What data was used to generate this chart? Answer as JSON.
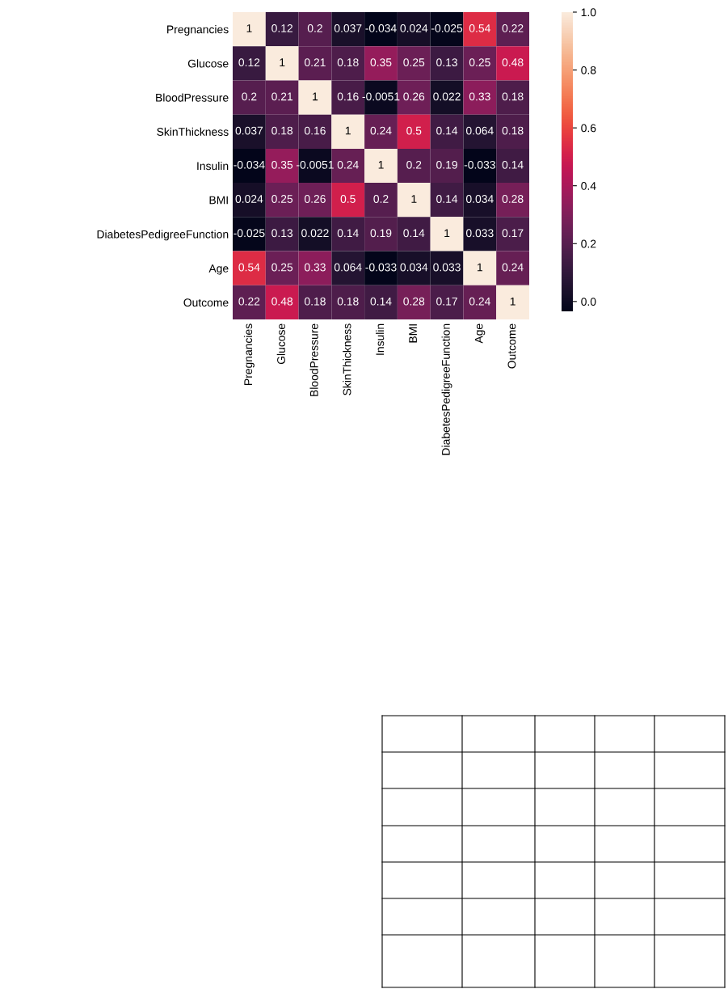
{
  "chart_data": {
    "type": "heatmap",
    "categories": [
      "Pregnancies",
      "Glucose",
      "BloodPressure",
      "SkinThickness",
      "Insulin",
      "BMI",
      "DiabetesPedigreeFunction",
      "Age",
      "Outcome"
    ],
    "y_categories": [
      "Pregnancies",
      "Glucose",
      "BloodPressure",
      "SkinThickness",
      "Insulin",
      "BMI",
      "DiabetesPedigreeFunction",
      "Age",
      "Outcome"
    ],
    "cells": [
      [
        1,
        0.12,
        0.2,
        0.037,
        -0.034,
        0.024,
        -0.025,
        0.54,
        0.22
      ],
      [
        0.12,
        1,
        0.21,
        0.18,
        0.35,
        0.25,
        0.13,
        0.25,
        0.48
      ],
      [
        0.2,
        0.21,
        1,
        0.16,
        -0.0051,
        0.26,
        0.022,
        0.33,
        0.18
      ],
      [
        0.037,
        0.18,
        0.16,
        1,
        0.24,
        0.5,
        0.14,
        0.064,
        0.18
      ],
      [
        -0.034,
        0.35,
        -0.0051,
        0.24,
        1,
        0.2,
        0.19,
        -0.033,
        0.14
      ],
      [
        0.024,
        0.25,
        0.26,
        0.5,
        0.2,
        1,
        0.14,
        0.034,
        0.28
      ],
      [
        -0.025,
        0.13,
        0.022,
        0.14,
        0.19,
        0.14,
        1,
        0.033,
        0.17
      ],
      [
        0.54,
        0.25,
        0.33,
        0.064,
        -0.033,
        0.034,
        0.033,
        1,
        0.24
      ],
      [
        0.22,
        0.48,
        0.18,
        0.18,
        0.14,
        0.28,
        0.17,
        0.24,
        1
      ]
    ],
    "clim": [
      -0.034,
      1
    ],
    "cticks": [
      {
        "value": 0,
        "label": "0.0"
      },
      {
        "value": 0.2,
        "label": "0.2"
      },
      {
        "value": 0.4,
        "label": "0.4"
      },
      {
        "value": 0.6,
        "label": "0.6"
      },
      {
        "value": 0.8,
        "label": "0.8"
      },
      {
        "value": 1,
        "label": "1.0"
      }
    ],
    "data_labels": true
  }
}
